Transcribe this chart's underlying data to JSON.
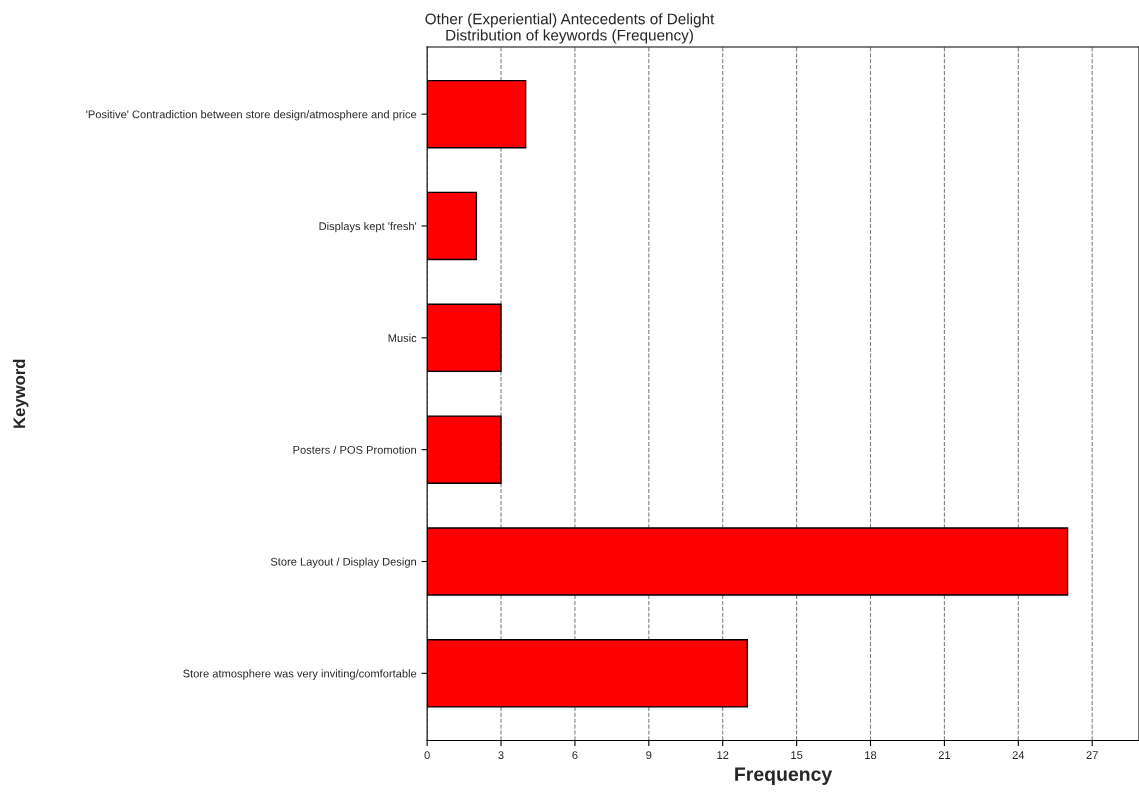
{
  "chart_data": {
    "type": "bar",
    "orientation": "horizontal",
    "title": "Other (Experiential) Antecedents of Delight",
    "subtitle": "Distribution of keywords (Frequency)",
    "xlabel": "Frequency",
    "ylabel": "Keyword",
    "categories": [
      "'Positive' Contradiction between store design/atmosphere and price",
      "Displays kept 'fresh'",
      "Music",
      "Posters / POS Promotion",
      "Store Layout / Display Design",
      "Store atmosphere was very inviting/comfortable"
    ],
    "values": [
      4,
      2,
      3,
      3,
      26,
      13
    ],
    "color": "#ff0000",
    "xlim": [
      0,
      28.9
    ],
    "xticks": [
      0,
      3,
      6,
      9,
      12,
      15,
      18,
      21,
      24,
      27
    ],
    "grid": "x"
  }
}
